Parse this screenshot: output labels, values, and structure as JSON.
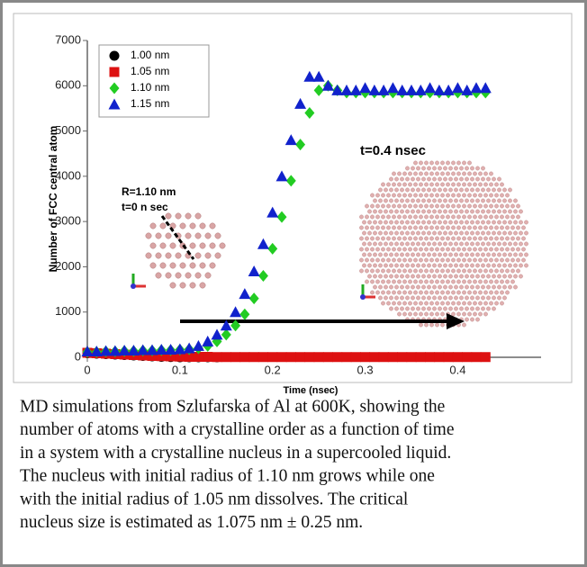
{
  "chart_data": {
    "type": "scatter",
    "ylabel": "Number of FCC central atom",
    "xlabel": "Time (nsec)",
    "x": [
      0,
      0.01,
      0.02,
      0.03,
      0.04,
      0.05,
      0.06,
      0.07,
      0.08,
      0.09,
      0.1,
      0.11,
      0.12,
      0.13,
      0.14,
      0.15,
      0.16,
      0.17,
      0.18,
      0.19,
      0.2,
      0.21,
      0.22,
      0.23,
      0.24,
      0.25,
      0.26,
      0.27,
      0.28,
      0.29,
      0.3,
      0.31,
      0.32,
      0.33,
      0.34,
      0.35,
      0.36,
      0.37,
      0.38,
      0.39,
      0.4,
      0.41,
      0.42,
      0.43
    ],
    "series": [
      {
        "name": "1.00 nm",
        "color": "#000000",
        "marker": "circle",
        "values": [
          90,
          80,
          70,
          60,
          50,
          40,
          30,
          20,
          10,
          5,
          0,
          0,
          0,
          0,
          0,
          null,
          null,
          null,
          null,
          null,
          null,
          null,
          null,
          null,
          null,
          null,
          null,
          null,
          null,
          null,
          null,
          null,
          null,
          null,
          null,
          null,
          null,
          null,
          null,
          null,
          null,
          null,
          null,
          null
        ]
      },
      {
        "name": "1.05 nm",
        "color": "#dd1111",
        "marker": "square",
        "values": [
          100,
          90,
          80,
          70,
          60,
          50,
          40,
          30,
          25,
          20,
          15,
          10,
          10,
          10,
          5,
          5,
          5,
          5,
          5,
          5,
          5,
          5,
          5,
          5,
          5,
          5,
          5,
          5,
          5,
          5,
          5,
          5,
          5,
          5,
          5,
          5,
          5,
          5,
          5,
          5,
          5,
          5,
          5,
          5
        ]
      },
      {
        "name": "1.10 nm",
        "color": "#22cc22",
        "marker": "diamond",
        "values": [
          120,
          120,
          130,
          130,
          140,
          140,
          150,
          150,
          160,
          160,
          170,
          180,
          200,
          250,
          350,
          500,
          700,
          950,
          1300,
          1800,
          2400,
          3100,
          3900,
          4700,
          5400,
          5900,
          6000,
          5900,
          5850,
          5850,
          5850,
          5850,
          5850,
          5850,
          5850,
          5850,
          5850,
          5850,
          5850,
          5850,
          5850,
          5850,
          5850,
          5850
        ]
      },
      {
        "name": "1.15 nm",
        "color": "#1122cc",
        "marker": "triangle",
        "values": [
          130,
          130,
          140,
          140,
          150,
          150,
          160,
          160,
          170,
          170,
          180,
          200,
          250,
          350,
          500,
          700,
          1000,
          1400,
          1900,
          2500,
          3200,
          4000,
          4800,
          5600,
          6200,
          6200,
          6000,
          5900,
          5900,
          5900,
          5950,
          5900,
          5900,
          5950,
          5900,
          5900,
          5900,
          5950,
          5900,
          5900,
          5950,
          5900,
          5950,
          5950
        ]
      }
    ],
    "xlim": [
      0,
      0.49
    ],
    "xticks": [
      0,
      0.1,
      0.2,
      0.3,
      0.4
    ],
    "ylim": [
      0,
      7000
    ],
    "yticks": [
      0,
      1000,
      2000,
      3000,
      4000,
      5000,
      6000,
      7000
    ],
    "annotations": [
      "R=1.10 nm",
      "t=0 n sec",
      "t=0.4 nsec"
    ]
  },
  "caption": [
    "MD simulations from Szlufarska of Al at 600K, showing the",
    "number of atoms with a crystalline order as a function of time",
    "in a system with a crystalline nucleus in a supercooled liquid.",
    "The nucleus with initial radius of 1.10 nm grows while one",
    "with the initial radius of 1.05 nm dissolves. The critical",
    "nucleus size is estimated as 1.075 nm ± 0.25 nm."
  ]
}
